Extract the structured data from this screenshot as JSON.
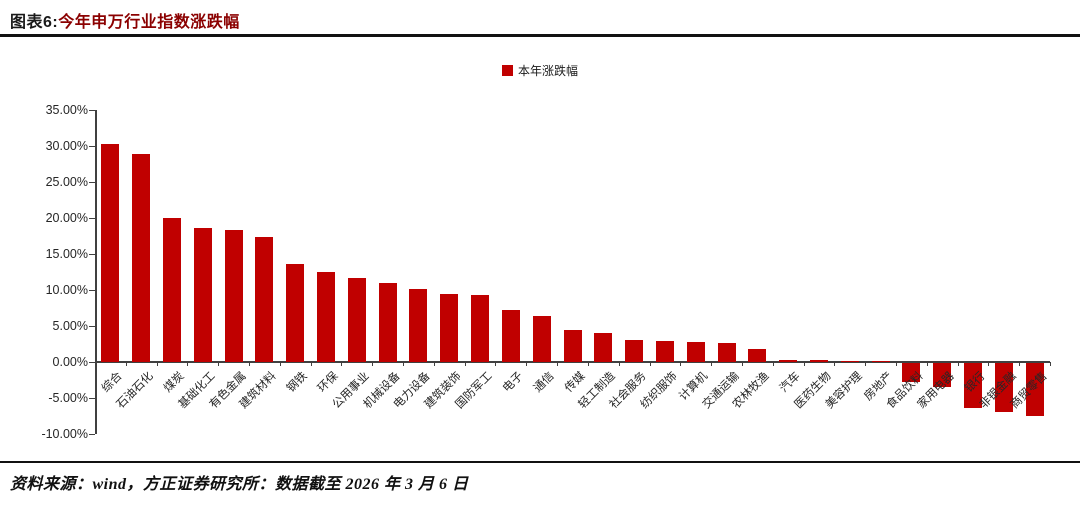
{
  "header": {
    "chart_no": "图表6:",
    "title": "今年申万行业指数涨跌幅"
  },
  "legend": {
    "label": "本年涨跌幅"
  },
  "footer": {
    "source": "资料来源：wind，方正证券研究所：数据截至 2026 年 3 月 6 日"
  },
  "colors": {
    "bar": "#C00000",
    "title_accent": "#8B0000",
    "axis": "#404040"
  },
  "chart_data": {
    "type": "bar",
    "title": "今年申万行业指数涨跌幅",
    "legend_entries": [
      "本年涨跌幅"
    ],
    "legend_position": "top-center",
    "grid": false,
    "ylim": [
      -10,
      35
    ],
    "ytick_step": 5,
    "ytick_suffix": "%",
    "ylabel": "",
    "xlabel": "",
    "categories": [
      "综合",
      "石油石化",
      "煤炭",
      "基础化工",
      "有色金属",
      "建筑材料",
      "钢铁",
      "环保",
      "公用事业",
      "机械设备",
      "电力设备",
      "建筑装饰",
      "国防军工",
      "电子",
      "通信",
      "传媒",
      "轻工制造",
      "社会服务",
      "纺织服饰",
      "计算机",
      "交通运输",
      "农林牧渔",
      "汽车",
      "医药生物",
      "美容护理",
      "房地产",
      "食品饮料",
      "家用电器",
      "银行",
      "非银金融",
      "商贸零售"
    ],
    "values": [
      30.3,
      28.9,
      20.0,
      18.6,
      18.4,
      17.3,
      13.6,
      12.5,
      11.6,
      11.0,
      10.2,
      9.5,
      9.3,
      7.2,
      6.4,
      4.4,
      4.0,
      3.0,
      2.9,
      2.8,
      2.7,
      1.8,
      0.3,
      0.3,
      0.2,
      0.2,
      -2.7,
      -3.4,
      -6.3,
      -6.9,
      -7.4
    ]
  }
}
